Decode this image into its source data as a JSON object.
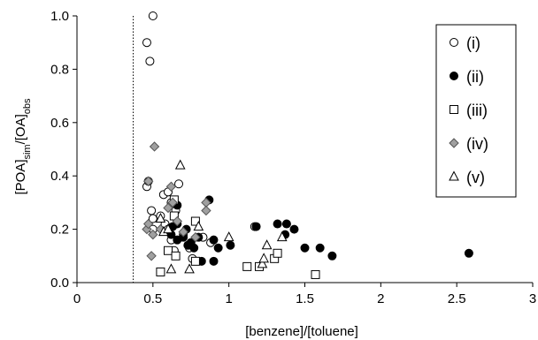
{
  "chart_data": {
    "type": "scatter",
    "xlabel": "[benzene]/[toluene]",
    "ylabel": {
      "main1": "[POA]",
      "sub1": "sim",
      "main2": "/[OA]",
      "sub2": "obs"
    },
    "xlim": [
      0,
      3
    ],
    "ylim": [
      0,
      1.0
    ],
    "x_ticks": [
      0,
      0.5,
      1,
      1.5,
      2,
      2.5,
      3
    ],
    "x_tick_labels": [
      "0",
      "0.5",
      "1",
      "1.5",
      "2",
      "2.5",
      "3"
    ],
    "y_ticks": [
      0,
      0.2,
      0.4,
      0.6,
      0.8,
      1.0
    ],
    "y_tick_labels": [
      "0.0",
      "0.2",
      "0.4",
      "0.6",
      "0.8",
      "1.0"
    ],
    "vertical_reference_line_x": 0.37,
    "grid": false,
    "legend_position": "top-right",
    "series": [
      {
        "name": "(i)",
        "marker": "circle-open",
        "points": [
          [
            0.5,
            1.0
          ],
          [
            0.46,
            0.9
          ],
          [
            0.48,
            0.83
          ],
          [
            0.46,
            0.36
          ],
          [
            0.47,
            0.38
          ],
          [
            0.49,
            0.27
          ],
          [
            0.5,
            0.24
          ],
          [
            0.55,
            0.25
          ],
          [
            0.57,
            0.33
          ],
          [
            0.6,
            0.34
          ],
          [
            0.62,
            0.3
          ],
          [
            0.65,
            0.27
          ],
          [
            0.67,
            0.37
          ],
          [
            0.58,
            0.22
          ],
          [
            0.6,
            0.2
          ],
          [
            0.62,
            0.16
          ],
          [
            0.64,
            0.12
          ],
          [
            0.7,
            0.18
          ],
          [
            0.74,
            0.13
          ],
          [
            0.76,
            0.09
          ],
          [
            0.83,
            0.17
          ],
          [
            0.88,
            0.15
          ],
          [
            1.17,
            0.21
          ],
          [
            0.5,
            0.2
          ]
        ]
      },
      {
        "name": "(ii)",
        "marker": "circle-filled",
        "points": [
          [
            0.63,
            0.21
          ],
          [
            0.66,
            0.29
          ],
          [
            0.66,
            0.22
          ],
          [
            0.62,
            0.18
          ],
          [
            0.66,
            0.16
          ],
          [
            0.7,
            0.17
          ],
          [
            0.72,
            0.2
          ],
          [
            0.73,
            0.14
          ],
          [
            0.75,
            0.15
          ],
          [
            0.77,
            0.13
          ],
          [
            0.8,
            0.17
          ],
          [
            0.82,
            0.08
          ],
          [
            0.87,
            0.31
          ],
          [
            0.9,
            0.08
          ],
          [
            0.9,
            0.16
          ],
          [
            0.93,
            0.13
          ],
          [
            1.01,
            0.14
          ],
          [
            1.18,
            0.21
          ],
          [
            1.32,
            0.22
          ],
          [
            1.37,
            0.18
          ],
          [
            1.38,
            0.22
          ],
          [
            1.43,
            0.2
          ],
          [
            1.5,
            0.13
          ],
          [
            1.6,
            0.13
          ],
          [
            1.68,
            0.1
          ],
          [
            2.58,
            0.11
          ]
        ]
      },
      {
        "name": "(iii)",
        "marker": "square-open",
        "points": [
          [
            0.55,
            0.04
          ],
          [
            0.6,
            0.12
          ],
          [
            0.64,
            0.25
          ],
          [
            0.64,
            0.31
          ],
          [
            0.65,
            0.1
          ],
          [
            0.78,
            0.23
          ],
          [
            0.78,
            0.08
          ],
          [
            1.12,
            0.06
          ],
          [
            1.2,
            0.06
          ],
          [
            1.3,
            0.09
          ],
          [
            1.32,
            0.11
          ],
          [
            1.57,
            0.03
          ]
        ]
      },
      {
        "name": "(iv)",
        "marker": "diamond-gray",
        "points": [
          [
            0.51,
            0.51
          ],
          [
            0.47,
            0.38
          ],
          [
            0.46,
            0.2
          ],
          [
            0.47,
            0.22
          ],
          [
            0.5,
            0.18
          ],
          [
            0.49,
            0.1
          ],
          [
            0.55,
            0.2
          ],
          [
            0.6,
            0.28
          ],
          [
            0.62,
            0.36
          ],
          [
            0.63,
            0.3
          ],
          [
            0.66,
            0.23
          ],
          [
            0.7,
            0.19
          ],
          [
            0.78,
            0.17
          ],
          [
            0.85,
            0.3
          ],
          [
            0.85,
            0.27
          ]
        ]
      },
      {
        "name": "(v)",
        "marker": "triangle-open",
        "points": [
          [
            0.68,
            0.44
          ],
          [
            0.55,
            0.24
          ],
          [
            0.57,
            0.19
          ],
          [
            0.6,
            0.2
          ],
          [
            0.62,
            0.05
          ],
          [
            0.74,
            0.05
          ],
          [
            0.8,
            0.21
          ],
          [
            1.0,
            0.17
          ],
          [
            1.22,
            0.07
          ],
          [
            1.23,
            0.09
          ],
          [
            1.25,
            0.14
          ],
          [
            1.35,
            0.17
          ]
        ]
      }
    ]
  }
}
